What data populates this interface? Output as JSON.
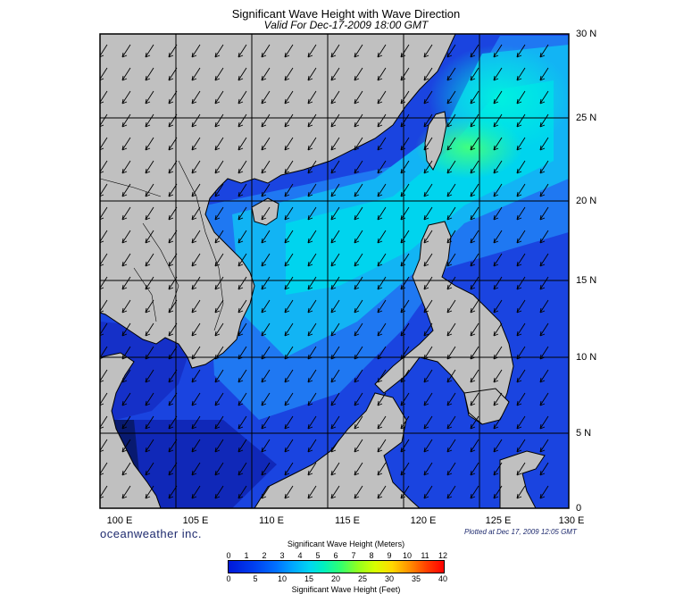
{
  "header": {
    "title": "Significant Wave Height with Wave Direction",
    "subtitle": "Valid For Dec-17-2009 18:00 GMT"
  },
  "map": {
    "lat_labels": [
      "30 N",
      "25 N",
      "20 N",
      "15 N",
      "10 N",
      "5 N",
      "0"
    ],
    "lon_labels": [
      "100 E",
      "105 E",
      "110 E",
      "115 E",
      "120 E",
      "125 E",
      "130 E"
    ],
    "land_color": "#c0c0c0",
    "wave_direction": "arrows pointing toward southwest"
  },
  "footer": {
    "brand": "oceanweather inc.",
    "plotted": "Plotted at Dec 17, 2009 12:05 GMT"
  },
  "legend": {
    "meters_title": "Significant Wave Height (Meters)",
    "meters_ticks": [
      "0",
      "1",
      "2",
      "3",
      "4",
      "5",
      "6",
      "7",
      "8",
      "9",
      "10",
      "11",
      "12"
    ],
    "feet_title": "Significant Wave Height (Feet)",
    "feet_ticks": [
      "0",
      "5",
      "10",
      "15",
      "20",
      "25",
      "30",
      "35",
      "40"
    ],
    "colors": [
      "#0018d8",
      "#0070ff",
      "#00d8f0",
      "#30ff70",
      "#d8ff00",
      "#ff9000",
      "#ff0000"
    ]
  }
}
